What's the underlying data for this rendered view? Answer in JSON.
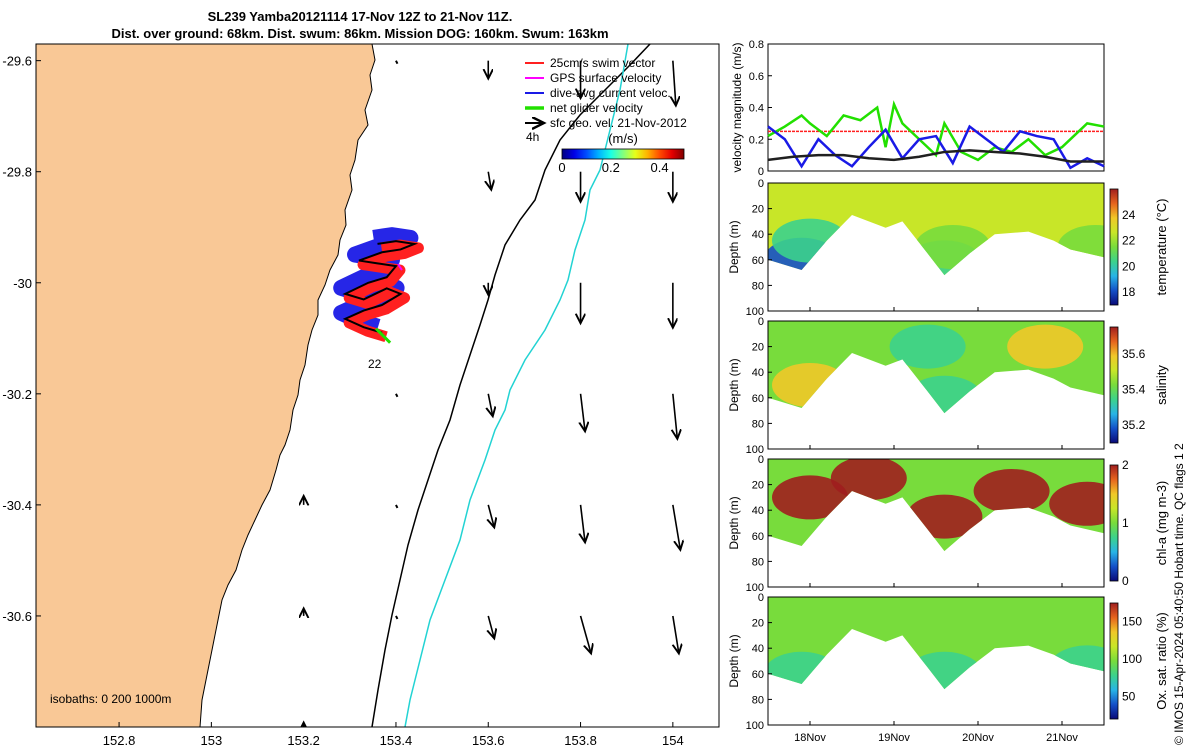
{
  "title_line1": "SL239 Yamba20121114 17-Nov 12Z to 21-Nov 11Z.",
  "title_line2": "Dist. over ground: 68km. Dist. swum: 86km. Mission DOG: 160km. Swum: 163km",
  "copyright": "© IMOS 15-Apr-2024 05:40:50 Hobart time. QC flags 1  2",
  "colors": {
    "land": "#f9c896",
    "swim": "#ff2020",
    "gps": "#ff00ff",
    "dive": "#1a1ae6",
    "glider": "#22e000",
    "geo": "#000000",
    "isobath1000": "#22d3d3"
  },
  "chart_data": [
    {
      "type": "map",
      "xlim": [
        152.62,
        154.1
      ],
      "ylim": [
        -30.8,
        -29.57
      ],
      "x_ticks": [
        "152.8",
        "153",
        "153.2",
        "153.4",
        "153.6",
        "153.8",
        "154"
      ],
      "y_ticks": [
        "-29.6",
        "-29.8",
        "-30",
        "-30.2",
        "-30.4",
        "-30.6"
      ],
      "legend": [
        "25cm/s swim vector",
        "GPS surface velocity",
        "dive-avg current veloc.",
        "net glider velocity",
        "sfc geo. vel. 21-Nov-2012"
      ],
      "colorbar": {
        "title": "(m/s)",
        "ticks": [
          "0",
          "0.2",
          "0.4"
        ],
        "range": [
          0,
          0.5
        ]
      },
      "scale_label": "4h",
      "annotation": "22",
      "isobaths_label": "isobaths: 0   200  1000m",
      "glider_track": [
        [
          153.36,
          -29.93
        ],
        [
          153.4,
          -29.925
        ],
        [
          153.44,
          -29.93
        ],
        [
          153.41,
          -29.94
        ],
        [
          153.37,
          -29.945
        ],
        [
          153.32,
          -29.96
        ],
        [
          153.36,
          -29.965
        ],
        [
          153.4,
          -29.97
        ],
        [
          153.38,
          -29.99
        ],
        [
          153.34,
          -30.0
        ],
        [
          153.29,
          -30.02
        ],
        [
          153.33,
          -30.03
        ],
        [
          153.38,
          -30.01
        ],
        [
          153.41,
          -30.02
        ],
        [
          153.37,
          -30.04
        ],
        [
          153.33,
          -30.05
        ],
        [
          153.29,
          -30.065
        ],
        [
          153.33,
          -30.08
        ],
        [
          153.37,
          -30.09
        ]
      ],
      "geo_vectors": [
        {
          "lon": 153.4,
          "lat": -29.6,
          "u": 0.0,
          "v": -0.01
        },
        {
          "lon": 153.6,
          "lat": -29.6,
          "u": 0.0,
          "v": -0.12
        },
        {
          "lon": 153.8,
          "lat": -29.6,
          "u": 0.0,
          "v": -0.25
        },
        {
          "lon": 154.0,
          "lat": -29.6,
          "u": 0.02,
          "v": -0.3
        },
        {
          "lon": 153.6,
          "lat": -29.8,
          "u": 0.02,
          "v": -0.12
        },
        {
          "lon": 153.8,
          "lat": -29.8,
          "u": 0.0,
          "v": -0.2
        },
        {
          "lon": 154.0,
          "lat": -29.8,
          "u": 0.0,
          "v": -0.2
        },
        {
          "lon": 153.6,
          "lat": -30.0,
          "u": 0.0,
          "v": -0.08
        },
        {
          "lon": 153.8,
          "lat": -30.0,
          "u": 0.0,
          "v": -0.27
        },
        {
          "lon": 154.0,
          "lat": -30.0,
          "u": 0.0,
          "v": -0.3
        },
        {
          "lon": 153.4,
          "lat": -30.2,
          "u": 0.0,
          "v": -0.01
        },
        {
          "lon": 153.6,
          "lat": -30.2,
          "u": 0.03,
          "v": -0.15
        },
        {
          "lon": 153.8,
          "lat": -30.2,
          "u": 0.03,
          "v": -0.25
        },
        {
          "lon": 154.0,
          "lat": -30.2,
          "u": 0.03,
          "v": -0.3
        },
        {
          "lon": 153.2,
          "lat": -30.4,
          "u": 0.0,
          "v": 0.06
        },
        {
          "lon": 153.4,
          "lat": -30.4,
          "u": 0.02,
          "v": -0.01
        },
        {
          "lon": 153.6,
          "lat": -30.4,
          "u": 0.04,
          "v": -0.15
        },
        {
          "lon": 153.8,
          "lat": -30.4,
          "u": 0.03,
          "v": -0.25
        },
        {
          "lon": 154.0,
          "lat": -30.4,
          "u": 0.05,
          "v": -0.3
        },
        {
          "lon": 153.2,
          "lat": -30.6,
          "u": 0.0,
          "v": 0.05
        },
        {
          "lon": 153.4,
          "lat": -30.6,
          "u": 0.02,
          "v": -0.01
        },
        {
          "lon": 153.6,
          "lat": -30.6,
          "u": 0.04,
          "v": -0.15
        },
        {
          "lon": 153.8,
          "lat": -30.6,
          "u": 0.07,
          "v": -0.25
        },
        {
          "lon": 154.0,
          "lat": -30.6,
          "u": 0.04,
          "v": -0.25
        },
        {
          "lon": 153.2,
          "lat": -30.8,
          "u": 0.0,
          "v": 0.03
        },
        {
          "lon": 153.4,
          "lat": -30.8,
          "u": 0.0,
          "v": 0.02
        },
        {
          "lon": 153.6,
          "lat": -30.8,
          "u": 0.0,
          "v": 0.02
        }
      ]
    },
    {
      "type": "line",
      "ylabel": "velocity magnitude (m/s)",
      "xlim": [
        17.5,
        21.5
      ],
      "ylim": [
        0,
        0.8
      ],
      "y_ticks": [
        "0",
        "0.2",
        "0.4",
        "0.6",
        "0.8"
      ],
      "series": [
        {
          "color": "#ff2020",
          "x": [
            17.5,
            21.5
          ],
          "y": [
            0.25,
            0.25
          ]
        },
        {
          "color": "#22e000",
          "x": [
            17.5,
            17.7,
            17.9,
            18.0,
            18.2,
            18.4,
            18.6,
            18.8,
            18.9,
            19.0,
            19.1,
            19.3,
            19.5,
            19.6,
            19.8,
            20.0,
            20.2,
            20.4,
            20.6,
            20.8,
            21.0,
            21.2,
            21.3,
            21.5
          ],
          "y": [
            0.22,
            0.28,
            0.35,
            0.3,
            0.22,
            0.35,
            0.32,
            0.4,
            0.15,
            0.42,
            0.3,
            0.2,
            0.1,
            0.3,
            0.12,
            0.07,
            0.15,
            0.12,
            0.2,
            0.1,
            0.15,
            0.25,
            0.3,
            0.28
          ]
        },
        {
          "color": "#1a1ae6",
          "x": [
            17.5,
            17.7,
            17.9,
            18.1,
            18.3,
            18.5,
            18.7,
            18.9,
            19.1,
            19.3,
            19.5,
            19.7,
            19.9,
            20.1,
            20.3,
            20.5,
            20.7,
            20.9,
            21.1,
            21.3,
            21.5
          ],
          "y": [
            0.28,
            0.2,
            0.03,
            0.2,
            0.1,
            0.03,
            0.15,
            0.26,
            0.08,
            0.2,
            0.22,
            0.05,
            0.28,
            0.2,
            0.12,
            0.25,
            0.22,
            0.2,
            0.02,
            0.08,
            0.03
          ]
        },
        {
          "color": "#202020",
          "x": [
            17.5,
            17.8,
            18.1,
            18.4,
            18.7,
            19.0,
            19.3,
            19.6,
            19.9,
            20.2,
            20.5,
            20.8,
            21.1,
            21.5
          ],
          "y": [
            0.07,
            0.09,
            0.1,
            0.1,
            0.08,
            0.07,
            0.09,
            0.12,
            0.13,
            0.12,
            0.11,
            0.09,
            0.06,
            0.06
          ]
        }
      ]
    },
    {
      "type": "heatmap",
      "variable": "temperature",
      "clabel": "temperature (°C)",
      "xlim": [
        17.5,
        21.5
      ],
      "ylim": [
        0,
        100
      ],
      "ylabel": "Depth (m)",
      "y_ticks": [
        "0",
        "20",
        "40",
        "60",
        "80",
        "100"
      ],
      "x_ticks": [
        "18Nov",
        "19Nov",
        "20Nov",
        "21Nov"
      ],
      "cticks": [
        "18",
        "20",
        "22",
        "24"
      ],
      "crange": [
        17,
        26
      ],
      "bottom_depth": [
        {
          "x": 17.5,
          "d": 60
        },
        {
          "x": 17.9,
          "d": 68
        },
        {
          "x": 18.2,
          "d": 45
        },
        {
          "x": 18.5,
          "d": 25
        },
        {
          "x": 18.9,
          "d": 35
        },
        {
          "x": 19.1,
          "d": 30
        },
        {
          "x": 19.4,
          "d": 55
        },
        {
          "x": 19.6,
          "d": 72
        },
        {
          "x": 19.9,
          "d": 55
        },
        {
          "x": 20.2,
          "d": 40
        },
        {
          "x": 20.6,
          "d": 38
        },
        {
          "x": 20.9,
          "d": 45
        },
        {
          "x": 21.1,
          "d": 52
        },
        {
          "x": 21.3,
          "d": 55
        },
        {
          "x": 21.5,
          "d": 58
        }
      ],
      "zones": [
        {
          "x": 17.9,
          "d": 60,
          "v": 18
        },
        {
          "x": 18.0,
          "d": 45,
          "v": 20
        },
        {
          "x": 19.6,
          "d": 62,
          "v": 20
        },
        {
          "x": 19.7,
          "d": 50,
          "v": 21
        },
        {
          "x": 21.4,
          "d": 50,
          "v": 21
        }
      ],
      "background": 23
    },
    {
      "type": "heatmap",
      "variable": "salinity",
      "clabel": "salinity",
      "xlim": [
        17.5,
        21.5
      ],
      "ylim": [
        0,
        100
      ],
      "ylabel": "Depth (m)",
      "y_ticks": [
        "0",
        "20",
        "40",
        "60",
        "80",
        "100"
      ],
      "x_ticks": [
        "18Nov",
        "19Nov",
        "20Nov",
        "21Nov"
      ],
      "cticks": [
        "35.2",
        "35.4",
        "35.6"
      ],
      "crange": [
        35.1,
        35.75
      ],
      "bottom_depth": [
        {
          "x": 17.5,
          "d": 60
        },
        {
          "x": 17.9,
          "d": 68
        },
        {
          "x": 18.2,
          "d": 45
        },
        {
          "x": 18.5,
          "d": 25
        },
        {
          "x": 18.9,
          "d": 35
        },
        {
          "x": 19.1,
          "d": 30
        },
        {
          "x": 19.4,
          "d": 55
        },
        {
          "x": 19.6,
          "d": 72
        },
        {
          "x": 19.9,
          "d": 55
        },
        {
          "x": 20.2,
          "d": 40
        },
        {
          "x": 20.6,
          "d": 38
        },
        {
          "x": 20.9,
          "d": 45
        },
        {
          "x": 21.1,
          "d": 52
        },
        {
          "x": 21.3,
          "d": 55
        },
        {
          "x": 21.5,
          "d": 58
        }
      ],
      "zones": [
        {
          "x": 18.0,
          "d": 50,
          "v": 35.55
        },
        {
          "x": 19.4,
          "d": 20,
          "v": 35.35
        },
        {
          "x": 19.6,
          "d": 60,
          "v": 35.35
        },
        {
          "x": 20.8,
          "d": 20,
          "v": 35.55
        }
      ],
      "background": 35.45
    },
    {
      "type": "heatmap",
      "variable": "chl-a",
      "clabel": "chl-a (mg m-3)",
      "xlim": [
        17.5,
        21.5
      ],
      "ylim": [
        0,
        100
      ],
      "ylabel": "Depth (m)",
      "y_ticks": [
        "0",
        "20",
        "40",
        "60",
        "80",
        "100"
      ],
      "x_ticks": [
        "18Nov",
        "19Nov",
        "20Nov",
        "21Nov"
      ],
      "cticks": [
        "0",
        "1",
        "2"
      ],
      "crange": [
        0,
        2
      ],
      "bottom_depth": [
        {
          "x": 17.5,
          "d": 60
        },
        {
          "x": 17.9,
          "d": 68
        },
        {
          "x": 18.2,
          "d": 45
        },
        {
          "x": 18.5,
          "d": 25
        },
        {
          "x": 18.9,
          "d": 35
        },
        {
          "x": 19.1,
          "d": 30
        },
        {
          "x": 19.4,
          "d": 55
        },
        {
          "x": 19.6,
          "d": 72
        },
        {
          "x": 19.9,
          "d": 55
        },
        {
          "x": 20.2,
          "d": 40
        },
        {
          "x": 20.6,
          "d": 38
        },
        {
          "x": 20.9,
          "d": 45
        },
        {
          "x": 21.1,
          "d": 52
        },
        {
          "x": 21.3,
          "d": 55
        },
        {
          "x": 21.5,
          "d": 58
        }
      ],
      "zones": [
        {
          "x": 18.0,
          "d": 30,
          "v": 2.0
        },
        {
          "x": 18.7,
          "d": 15,
          "v": 1.9
        },
        {
          "x": 19.6,
          "d": 45,
          "v": 1.9
        },
        {
          "x": 20.4,
          "d": 25,
          "v": 2.0
        },
        {
          "x": 21.3,
          "d": 35,
          "v": 1.9
        }
      ],
      "background": 1.1
    },
    {
      "type": "heatmap",
      "variable": "oxygen",
      "clabel": "Ox. sat. ratio (%)",
      "xlim": [
        17.5,
        21.5
      ],
      "ylim": [
        0,
        100
      ],
      "ylabel": "Depth (m)",
      "y_ticks": [
        "0",
        "20",
        "40",
        "60",
        "80",
        "100"
      ],
      "x_ticks": [
        "18Nov",
        "19Nov",
        "20Nov",
        "21Nov"
      ],
      "cticks": [
        "50",
        "100",
        "150"
      ],
      "crange": [
        20,
        175
      ],
      "bottom_depth": [
        {
          "x": 17.5,
          "d": 60
        },
        {
          "x": 17.9,
          "d": 68
        },
        {
          "x": 18.2,
          "d": 45
        },
        {
          "x": 18.5,
          "d": 25
        },
        {
          "x": 18.9,
          "d": 35
        },
        {
          "x": 19.1,
          "d": 30
        },
        {
          "x": 19.4,
          "d": 55
        },
        {
          "x": 19.6,
          "d": 72
        },
        {
          "x": 19.9,
          "d": 55
        },
        {
          "x": 20.2,
          "d": 40
        },
        {
          "x": 20.6,
          "d": 38
        },
        {
          "x": 20.9,
          "d": 45
        },
        {
          "x": 21.1,
          "d": 52
        },
        {
          "x": 21.3,
          "d": 55
        },
        {
          "x": 21.5,
          "d": 58
        }
      ],
      "zones": [
        {
          "x": 17.9,
          "d": 60,
          "v": 75
        },
        {
          "x": 19.6,
          "d": 60,
          "v": 80
        },
        {
          "x": 21.3,
          "d": 55,
          "v": 80
        }
      ],
      "background": 105
    }
  ]
}
